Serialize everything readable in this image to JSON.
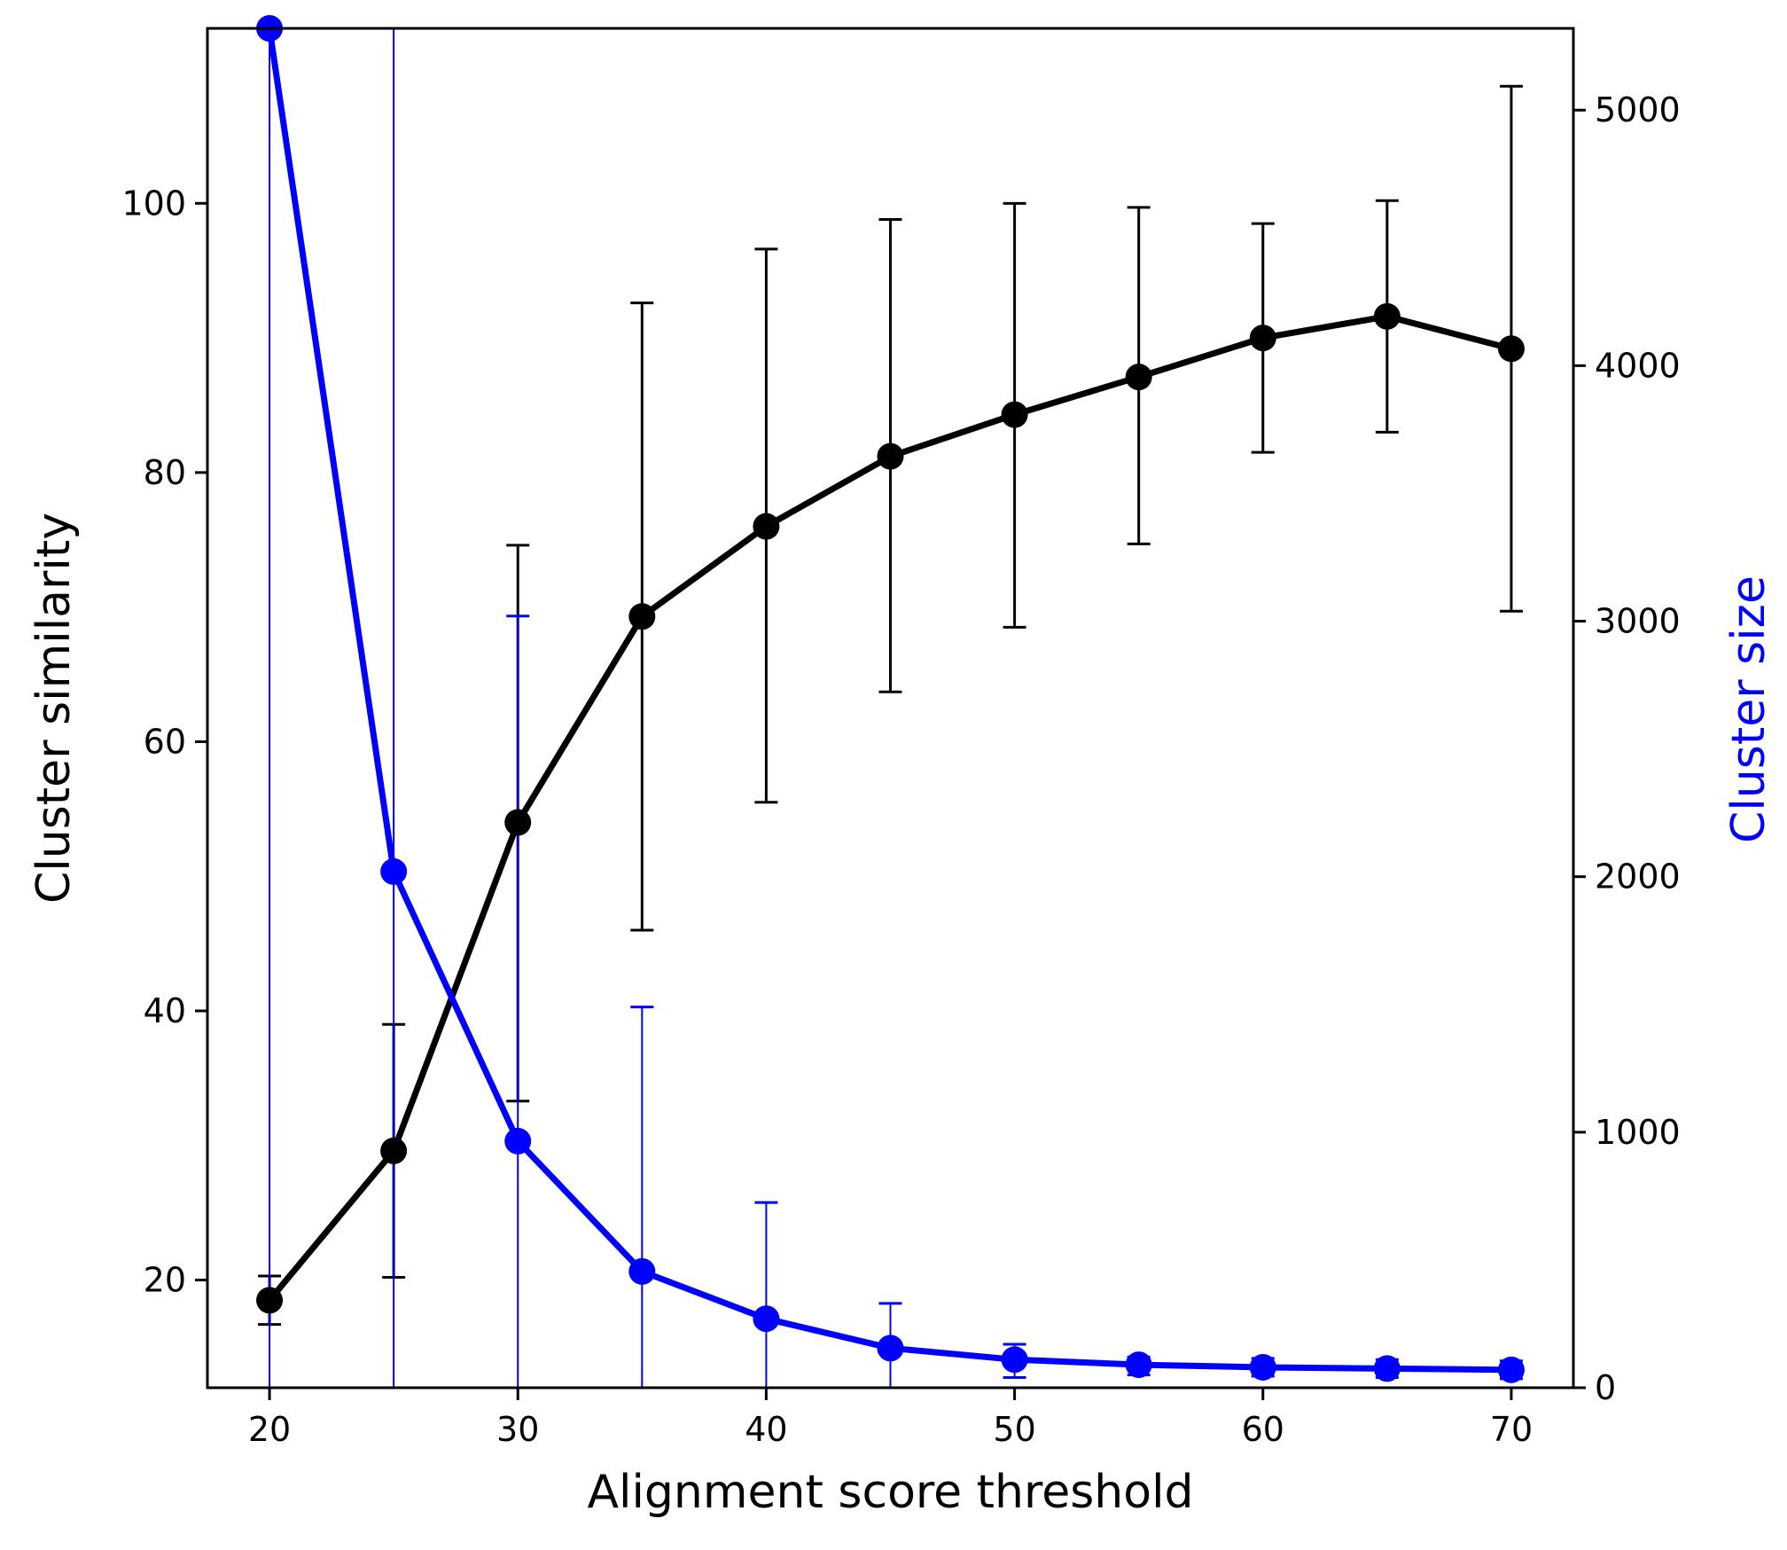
{
  "chart_data": {
    "type": "line",
    "xlabel": "Alignment score threshold",
    "ylabel": "Cluster similarity",
    "y2label": "Cluster size",
    "x": [
      20,
      25,
      30,
      35,
      40,
      45,
      50,
      55,
      60,
      65,
      70
    ],
    "xlim": [
      17.5,
      72.5
    ],
    "ylim": [
      12,
      113
    ],
    "y2lim": [
      0,
      5320
    ],
    "xticks": [
      20,
      30,
      40,
      50,
      60,
      70
    ],
    "yticks": [
      20,
      40,
      60,
      80,
      100
    ],
    "y2ticks": [
      0,
      1000,
      2000,
      3000,
      4000,
      5000
    ],
    "grid": false,
    "series": [
      {
        "axis": "left",
        "color": "#000000",
        "values": [
          18.5,
          29.6,
          54.0,
          69.3,
          76.0,
          81.2,
          84.3,
          87.1,
          90.0,
          91.6,
          89.2
        ],
        "err_low": [
          16.7,
          20.2,
          33.3,
          46.0,
          55.5,
          63.7,
          68.5,
          74.7,
          81.5,
          83.0,
          69.7
        ],
        "err_high": [
          20.3,
          39.0,
          74.6,
          92.6,
          96.6,
          98.8,
          100.0,
          99.7,
          98.5,
          100.2,
          108.7
        ]
      },
      {
        "axis": "right",
        "color": "#0000ff",
        "values": [
          5320,
          2020,
          965,
          455,
          270,
          155,
          110,
          90,
          80,
          75,
          70
        ],
        "err_low": [
          0,
          0,
          0,
          0,
          0,
          0,
          40,
          50,
          45,
          40,
          35
        ],
        "err_high": [
          5320,
          5320,
          3020,
          1490,
          725,
          330,
          170,
          120,
          115,
          110,
          105
        ]
      }
    ]
  }
}
